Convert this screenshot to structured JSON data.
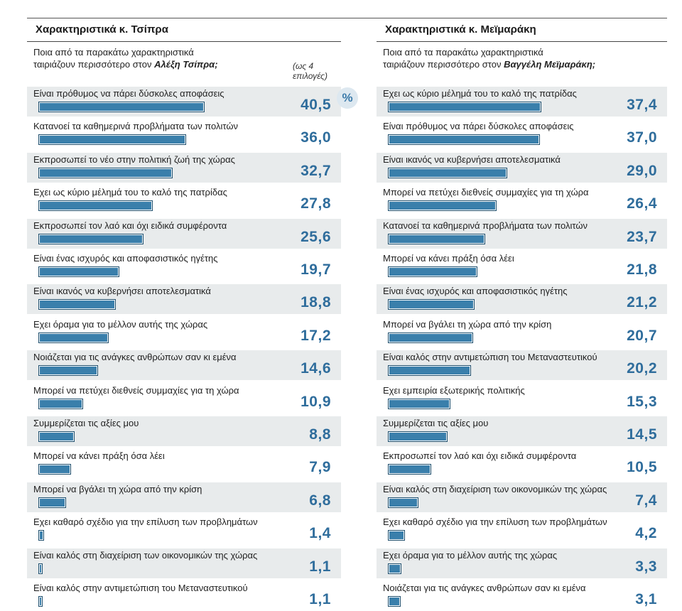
{
  "percent_symbol": "%",
  "left_panel": {
    "title": "Χαρακτηριστικά κ. Τσίπρα",
    "question_line1": "Ποια από τα παρακάτω χαρακτηριστικά",
    "question_line2_prefix": "ταιριάζουν περισσότερο στον ",
    "question_name": "Αλέξη Τσίπρα;",
    "note": "(ως 4 επιλογές)"
  },
  "right_panel": {
    "title": "Χαρακτηριστικά κ. Μεϊμαράκη",
    "question_line1": "Ποια από τα παρακάτω χαρακτηριστικά",
    "question_line2_prefix": "ταιριάζουν περισσότερο στον ",
    "question_name": "Βαγγέλη Μεϊμαράκη;"
  },
  "chart_data": [
    {
      "type": "bar",
      "orientation": "horizontal",
      "title": "Χαρακτηριστικά κ. Τσίπρα",
      "unit": "%",
      "xlim": [
        0,
        45
      ],
      "categories": [
        "Είναι πρόθυμος να πάρει δύσκολες αποφάσεις",
        "Κατανοεί τα καθημερινά προβλήματα των πολιτών",
        "Εκπροσωπεί το νέο στην πολιτική ζωή της χώρας",
        "Εχει ως κύριο μέλημά του το καλό της πατρίδας",
        "Εκπροσωπεί τον λαό και όχι ειδικά συμφέροντα",
        "Είναι ένας ισχυρός και αποφασιστικός ηγέτης",
        "Είναι ικανός να κυβερνήσει αποτελεσματικά",
        "Εχει όραμα για το μέλλον αυτής της χώρας",
        "Νοιάζεται για τις ανάγκες ανθρώπων σαν κι εμένα",
        "Μπορεί να πετύχει διεθνείς συμμαχίες για τη χώρα",
        "Συμμερίζεται τις αξίες μου",
        "Μπορεί να κάνει πράξη όσα λέει",
        "Μπορεί να βγάλει τη χώρα από την κρίση",
        "Εχει καθαρό σχέδιο για την επίλυση των προβλημάτων",
        "Είναι καλός στη διαχείριση των οικονομικών της χώρας",
        "Είναι καλός στην αντιμετώπιση του Μεταναστευτικού"
      ],
      "values": [
        40.5,
        36.0,
        32.7,
        27.8,
        25.6,
        19.7,
        18.8,
        17.2,
        14.6,
        10.9,
        8.8,
        7.9,
        6.8,
        1.4,
        1.1,
        1.1
      ],
      "labels": [
        "40,5",
        "36,0",
        "32,7",
        "27,8",
        "25,6",
        "19,7",
        "18,8",
        "17,2",
        "14,6",
        "10,9",
        "8,8",
        "7,9",
        "6,8",
        "1,4",
        "1,1",
        "1,1"
      ]
    },
    {
      "type": "bar",
      "orientation": "horizontal",
      "title": "Χαρακτηριστικά κ. Μεϊμαράκη",
      "unit": "%",
      "xlim": [
        0,
        45
      ],
      "categories": [
        "Εχει ως κύριο μέλημά του το καλό της πατρίδας",
        "Είναι πρόθυμος να πάρει δύσκολες αποφάσεις",
        "Είναι ικανός να κυβερνήσει αποτελεσματικά",
        "Μπορεί να πετύχει διεθνείς συμμαχίες για τη χώρα",
        "Κατανοεί τα καθημερινά προβλήματα των πολιτών",
        "Μπορεί να κάνει πράξη όσα λέει",
        "Είναι ένας ισχυρός και αποφασιστικός ηγέτης",
        "Μπορεί να βγάλει τη χώρα από την κρίση",
        "Είναι καλός στην αντιμετώπιση του Μεταναστευτικού",
        "Εχει εμπειρία εξωτερικής πολιτικής",
        "Συμμερίζεται τις αξίες μου",
        "Εκπροσωπεί τον λαό και όχι ειδικά συμφέροντα",
        "Είναι καλός στη διαχείριση των οικονομικών της χώρας",
        "Εχει καθαρό σχέδιο για την επίλυση των προβλημάτων",
        "Εχει όραμα για το μέλλον αυτής της χώρας",
        "Νοιάζεται για τις ανάγκες ανθρώπων σαν κι εμένα"
      ],
      "values": [
        37.4,
        37.0,
        29.0,
        26.4,
        23.7,
        21.8,
        21.2,
        20.7,
        20.2,
        15.3,
        14.5,
        10.5,
        7.4,
        4.2,
        3.3,
        3.1
      ],
      "labels": [
        "37,4",
        "37,0",
        "29,0",
        "26,4",
        "23,7",
        "21,8",
        "21,2",
        "20,7",
        "20,2",
        "15,3",
        "14,5",
        "10,5",
        "7,4",
        "4,2",
        "3,3",
        "3,1"
      ]
    }
  ]
}
